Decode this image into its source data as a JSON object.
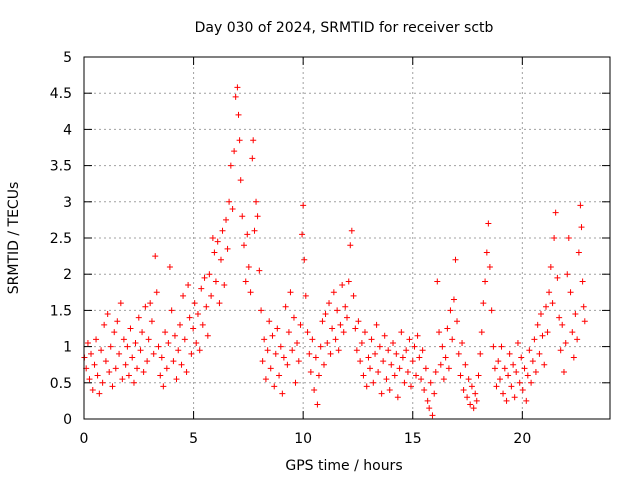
{
  "chart_data": {
    "type": "scatter",
    "title": "Day 030 of 2024, SRMTID for receiver sctb",
    "xlabel": "GPS time / hours",
    "ylabel": "SRMTID / TECUs",
    "xlim": [
      0,
      24
    ],
    "ylim": [
      0,
      5
    ],
    "grid": true,
    "xticks": [
      0,
      5,
      10,
      15,
      20
    ],
    "xtick_labels": [
      "0",
      "5",
      "10",
      "15",
      "20"
    ],
    "yticks": [
      0,
      0.5,
      1,
      1.5,
      2,
      2.5,
      3,
      3.5,
      4,
      4.5,
      5
    ],
    "ytick_labels": [
      "0",
      "0.5",
      "1",
      "1.5",
      "2",
      "2.5",
      "3",
      "3.5",
      "4",
      "4.5",
      "5"
    ],
    "marker": "plus",
    "marker_color": "#ff0000",
    "axis_color": "#000000",
    "grid_color": "#a0a0a0",
    "series": [
      {
        "name": "SRMTID",
        "points": [
          [
            0.02,
            0.85
          ],
          [
            0.1,
            0.7
          ],
          [
            0.18,
            1.05
          ],
          [
            0.25,
            0.55
          ],
          [
            0.32,
            0.9
          ],
          [
            0.4,
            0.4
          ],
          [
            0.48,
            0.75
          ],
          [
            0.55,
            1.1
          ],
          [
            0.62,
            0.6
          ],
          [
            0.7,
            0.35
          ],
          [
            0.78,
            0.95
          ],
          [
            0.85,
            0.5
          ],
          [
            0.92,
            1.3
          ],
          [
            1.0,
            0.8
          ],
          [
            1.08,
            1.45
          ],
          [
            1.15,
            0.65
          ],
          [
            1.22,
            1.0
          ],
          [
            1.3,
            0.45
          ],
          [
            1.38,
            1.2
          ],
          [
            1.45,
            0.7
          ],
          [
            1.52,
            1.35
          ],
          [
            1.6,
            0.9
          ],
          [
            1.68,
            1.6
          ],
          [
            1.75,
            0.55
          ],
          [
            1.82,
            1.1
          ],
          [
            1.9,
            0.75
          ],
          [
            1.98,
            1.0
          ],
          [
            2.05,
            0.6
          ],
          [
            2.12,
            1.25
          ],
          [
            2.2,
            0.85
          ],
          [
            2.28,
            0.5
          ],
          [
            2.35,
            1.05
          ],
          [
            2.42,
            0.7
          ],
          [
            2.5,
            1.4
          ],
          [
            2.58,
            0.95
          ],
          [
            2.65,
            1.2
          ],
          [
            2.72,
            0.65
          ],
          [
            2.8,
            1.55
          ],
          [
            2.88,
            0.8
          ],
          [
            2.95,
            1.1
          ],
          [
            3.02,
            1.6
          ],
          [
            3.1,
            1.35
          ],
          [
            3.18,
            0.9
          ],
          [
            3.25,
            2.25
          ],
          [
            3.32,
            1.75
          ],
          [
            3.4,
            1.0
          ],
          [
            3.48,
            0.6
          ],
          [
            3.55,
            0.85
          ],
          [
            3.62,
            0.45
          ],
          [
            3.7,
            1.2
          ],
          [
            3.78,
            0.7
          ],
          [
            3.85,
            1.05
          ],
          [
            3.92,
            2.1
          ],
          [
            4.0,
            1.5
          ],
          [
            4.08,
            0.8
          ],
          [
            4.15,
            1.15
          ],
          [
            4.22,
            0.55
          ],
          [
            4.3,
            0.95
          ],
          [
            4.38,
            1.3
          ],
          [
            4.45,
            0.75
          ],
          [
            4.52,
            1.7
          ],
          [
            4.6,
            1.1
          ],
          [
            4.68,
            0.65
          ],
          [
            4.75,
            1.85
          ],
          [
            4.82,
            1.4
          ],
          [
            4.9,
            0.9
          ],
          [
            4.98,
            1.25
          ],
          [
            5.05,
            1.6
          ],
          [
            5.12,
            1.05
          ],
          [
            5.2,
            1.45
          ],
          [
            5.28,
            0.95
          ],
          [
            5.35,
            1.8
          ],
          [
            5.42,
            1.3
          ],
          [
            5.5,
            1.95
          ],
          [
            5.58,
            1.55
          ],
          [
            5.65,
            1.15
          ],
          [
            5.72,
            2.0
          ],
          [
            5.8,
            1.7
          ],
          [
            5.88,
            2.5
          ],
          [
            5.95,
            2.3
          ],
          [
            6.02,
            1.9
          ],
          [
            6.1,
            2.45
          ],
          [
            6.18,
            1.6
          ],
          [
            6.25,
            2.2
          ],
          [
            6.32,
            2.6
          ],
          [
            6.4,
            1.85
          ],
          [
            6.48,
            2.75
          ],
          [
            6.55,
            2.35
          ],
          [
            6.62,
            3.0
          ],
          [
            6.7,
            3.5
          ],
          [
            6.78,
            2.9
          ],
          [
            6.85,
            3.7
          ],
          [
            6.92,
            4.45
          ],
          [
            7.0,
            4.58
          ],
          [
            7.05,
            4.2
          ],
          [
            7.1,
            3.85
          ],
          [
            7.15,
            3.3
          ],
          [
            7.22,
            2.8
          ],
          [
            7.3,
            2.4
          ],
          [
            7.38,
            1.9
          ],
          [
            7.45,
            2.55
          ],
          [
            7.52,
            2.1
          ],
          [
            7.6,
            1.75
          ],
          [
            7.68,
            3.6
          ],
          [
            7.72,
            3.85
          ],
          [
            7.78,
            2.6
          ],
          [
            7.85,
            3.0
          ],
          [
            7.92,
            2.8
          ],
          [
            8.0,
            2.05
          ],
          [
            8.08,
            1.5
          ],
          [
            8.15,
            0.8
          ],
          [
            8.22,
            1.1
          ],
          [
            8.3,
            0.55
          ],
          [
            8.38,
            0.95
          ],
          [
            8.45,
            1.35
          ],
          [
            8.52,
            0.7
          ],
          [
            8.6,
            1.15
          ],
          [
            8.68,
            0.45
          ],
          [
            8.75,
            0.9
          ],
          [
            8.82,
            1.25
          ],
          [
            8.9,
            0.6
          ],
          [
            8.98,
            1.0
          ],
          [
            9.05,
            0.35
          ],
          [
            9.12,
            0.85
          ],
          [
            9.2,
            1.55
          ],
          [
            9.28,
            0.75
          ],
          [
            9.35,
            1.2
          ],
          [
            9.42,
            1.75
          ],
          [
            9.5,
            0.95
          ],
          [
            9.58,
            1.4
          ],
          [
            9.65,
            0.5
          ],
          [
            9.72,
            1.05
          ],
          [
            9.8,
            0.8
          ],
          [
            9.88,
            1.3
          ],
          [
            9.95,
            2.55
          ],
          [
            10.0,
            2.95
          ],
          [
            10.05,
            2.2
          ],
          [
            10.12,
            1.7
          ],
          [
            10.2,
            1.2
          ],
          [
            10.28,
            0.9
          ],
          [
            10.35,
            0.65
          ],
          [
            10.42,
            1.1
          ],
          [
            10.5,
            0.4
          ],
          [
            10.58,
            0.85
          ],
          [
            10.65,
            0.2
          ],
          [
            10.72,
            0.6
          ],
          [
            10.8,
            1.0
          ],
          [
            10.88,
            1.35
          ],
          [
            10.95,
            0.75
          ],
          [
            11.02,
            1.45
          ],
          [
            11.1,
            1.05
          ],
          [
            11.18,
            1.6
          ],
          [
            11.25,
            0.9
          ],
          [
            11.32,
            1.25
          ],
          [
            11.4,
            1.75
          ],
          [
            11.48,
            1.1
          ],
          [
            11.55,
            1.5
          ],
          [
            11.62,
            0.95
          ],
          [
            11.7,
            1.3
          ],
          [
            11.78,
            1.85
          ],
          [
            11.85,
            1.2
          ],
          [
            11.92,
            1.55
          ],
          [
            12.0,
            1.4
          ],
          [
            12.08,
            1.9
          ],
          [
            12.15,
            2.4
          ],
          [
            12.22,
            2.6
          ],
          [
            12.3,
            1.7
          ],
          [
            12.38,
            1.25
          ],
          [
            12.45,
            0.95
          ],
          [
            12.52,
            1.35
          ],
          [
            12.6,
            0.8
          ],
          [
            12.68,
            1.05
          ],
          [
            12.75,
            0.6
          ],
          [
            12.82,
            1.2
          ],
          [
            12.9,
            0.45
          ],
          [
            12.98,
            0.85
          ],
          [
            13.05,
            0.7
          ],
          [
            13.12,
            1.1
          ],
          [
            13.2,
            0.5
          ],
          [
            13.28,
            0.9
          ],
          [
            13.35,
            1.3
          ],
          [
            13.42,
            0.65
          ],
          [
            13.5,
            1.0
          ],
          [
            13.58,
            0.35
          ],
          [
            13.65,
            0.8
          ],
          [
            13.72,
            1.15
          ],
          [
            13.8,
            0.55
          ],
          [
            13.88,
            0.95
          ],
          [
            13.95,
            0.4
          ],
          [
            14.02,
            0.75
          ],
          [
            14.1,
            1.05
          ],
          [
            14.18,
            0.6
          ],
          [
            14.25,
            0.9
          ],
          [
            14.32,
            0.3
          ],
          [
            14.4,
            0.7
          ],
          [
            14.48,
            1.2
          ],
          [
            14.55,
            0.85
          ],
          [
            14.62,
            0.5
          ],
          [
            14.7,
            0.95
          ],
          [
            14.78,
            0.65
          ],
          [
            14.85,
            1.1
          ],
          [
            14.92,
            0.45
          ],
          [
            15.0,
            0.8
          ],
          [
            15.08,
            1.0
          ],
          [
            15.15,
            0.6
          ],
          [
            15.22,
            1.15
          ],
          [
            15.3,
            0.85
          ],
          [
            15.38,
            0.55
          ],
          [
            15.45,
            0.95
          ],
          [
            15.52,
            0.4
          ],
          [
            15.6,
            0.7
          ],
          [
            15.68,
            0.25
          ],
          [
            15.75,
            0.15
          ],
          [
            15.82,
            0.5
          ],
          [
            15.9,
            0.05
          ],
          [
            15.98,
            0.35
          ],
          [
            16.05,
            0.65
          ],
          [
            16.12,
            1.9
          ],
          [
            16.2,
            1.2
          ],
          [
            16.28,
            0.75
          ],
          [
            16.35,
            1.0
          ],
          [
            16.42,
            0.55
          ],
          [
            16.5,
            0.85
          ],
          [
            16.58,
            1.25
          ],
          [
            16.65,
            0.7
          ],
          [
            16.72,
            1.5
          ],
          [
            16.8,
            1.1
          ],
          [
            16.88,
            1.65
          ],
          [
            16.95,
            2.2
          ],
          [
            17.02,
            1.35
          ],
          [
            17.1,
            0.9
          ],
          [
            17.18,
            0.6
          ],
          [
            17.25,
            1.05
          ],
          [
            17.32,
            0.4
          ],
          [
            17.4,
            0.75
          ],
          [
            17.48,
            0.3
          ],
          [
            17.55,
            0.55
          ],
          [
            17.62,
            0.2
          ],
          [
            17.7,
            0.45
          ],
          [
            17.78,
            0.15
          ],
          [
            17.85,
            0.35
          ],
          [
            17.92,
            0.25
          ],
          [
            18.0,
            0.6
          ],
          [
            18.08,
            0.9
          ],
          [
            18.15,
            1.2
          ],
          [
            18.22,
            1.6
          ],
          [
            18.3,
            1.9
          ],
          [
            18.38,
            2.3
          ],
          [
            18.45,
            2.7
          ],
          [
            18.52,
            2.1
          ],
          [
            18.6,
            1.5
          ],
          [
            18.68,
            1.0
          ],
          [
            18.75,
            0.7
          ],
          [
            18.82,
            0.45
          ],
          [
            18.9,
            0.8
          ],
          [
            18.98,
            0.55
          ],
          [
            19.05,
            1.0
          ],
          [
            19.12,
            0.35
          ],
          [
            19.2,
            0.7
          ],
          [
            19.28,
            0.25
          ],
          [
            19.35,
            0.6
          ],
          [
            19.42,
            0.9
          ],
          [
            19.5,
            0.45
          ],
          [
            19.58,
            0.75
          ],
          [
            19.65,
            0.3
          ],
          [
            19.72,
            0.65
          ],
          [
            19.8,
            1.05
          ],
          [
            19.88,
            0.5
          ],
          [
            19.95,
            0.85
          ],
          [
            20.02,
            0.4
          ],
          [
            20.1,
            0.7
          ],
          [
            20.18,
            0.25
          ],
          [
            20.25,
            0.6
          ],
          [
            20.32,
            0.95
          ],
          [
            20.4,
            0.5
          ],
          [
            20.48,
            0.8
          ],
          [
            20.55,
            1.1
          ],
          [
            20.62,
            0.65
          ],
          [
            20.7,
            1.3
          ],
          [
            20.78,
            0.9
          ],
          [
            20.85,
            1.45
          ],
          [
            20.92,
            1.15
          ],
          [
            21.0,
            0.75
          ],
          [
            21.08,
            1.55
          ],
          [
            21.15,
            1.2
          ],
          [
            21.22,
            1.75
          ],
          [
            21.3,
            2.1
          ],
          [
            21.38,
            1.6
          ],
          [
            21.45,
            2.5
          ],
          [
            21.52,
            2.85
          ],
          [
            21.6,
            1.95
          ],
          [
            21.68,
            1.4
          ],
          [
            21.75,
            0.95
          ],
          [
            21.82,
            1.3
          ],
          [
            21.9,
            0.65
          ],
          [
            21.98,
            1.05
          ],
          [
            22.05,
            2.0
          ],
          [
            22.12,
            2.5
          ],
          [
            22.2,
            1.75
          ],
          [
            22.28,
            1.2
          ],
          [
            22.35,
            0.85
          ],
          [
            22.42,
            1.45
          ],
          [
            22.5,
            1.1
          ],
          [
            22.58,
            2.3
          ],
          [
            22.65,
            2.95
          ],
          [
            22.7,
            2.65
          ],
          [
            22.75,
            1.9
          ],
          [
            22.8,
            1.55
          ],
          [
            22.85,
            1.35
          ]
        ]
      }
    ]
  }
}
